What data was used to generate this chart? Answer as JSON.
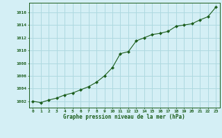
{
  "x": [
    0,
    1,
    2,
    3,
    4,
    5,
    6,
    7,
    8,
    9,
    10,
    11,
    12,
    13,
    14,
    15,
    16,
    17,
    18,
    19,
    20,
    21,
    22,
    23
  ],
  "y": [
    1002.0,
    1001.8,
    1002.2,
    1002.5,
    1003.0,
    1003.3,
    1003.8,
    1004.3,
    1005.0,
    1006.0,
    1007.3,
    1009.5,
    1009.8,
    1011.5,
    1012.0,
    1012.5,
    1012.7,
    1013.0,
    1013.8,
    1014.0,
    1014.2,
    1014.8,
    1015.3,
    1016.8
  ],
  "line_color": "#1a5c1a",
  "marker_color": "#1a5c1a",
  "bg_color": "#d4eff5",
  "grid_color": "#aed9e0",
  "title": "Graphe pression niveau de la mer (hPa)",
  "title_color": "#1a5c1a",
  "xlim": [
    -0.5,
    23.5
  ],
  "ylim": [
    1001.0,
    1017.5
  ],
  "yticks": [
    1002,
    1004,
    1006,
    1008,
    1010,
    1012,
    1014,
    1016
  ],
  "xticks": [
    0,
    1,
    2,
    3,
    4,
    5,
    6,
    7,
    8,
    9,
    10,
    11,
    12,
    13,
    14,
    15,
    16,
    17,
    18,
    19,
    20,
    21,
    22,
    23
  ]
}
